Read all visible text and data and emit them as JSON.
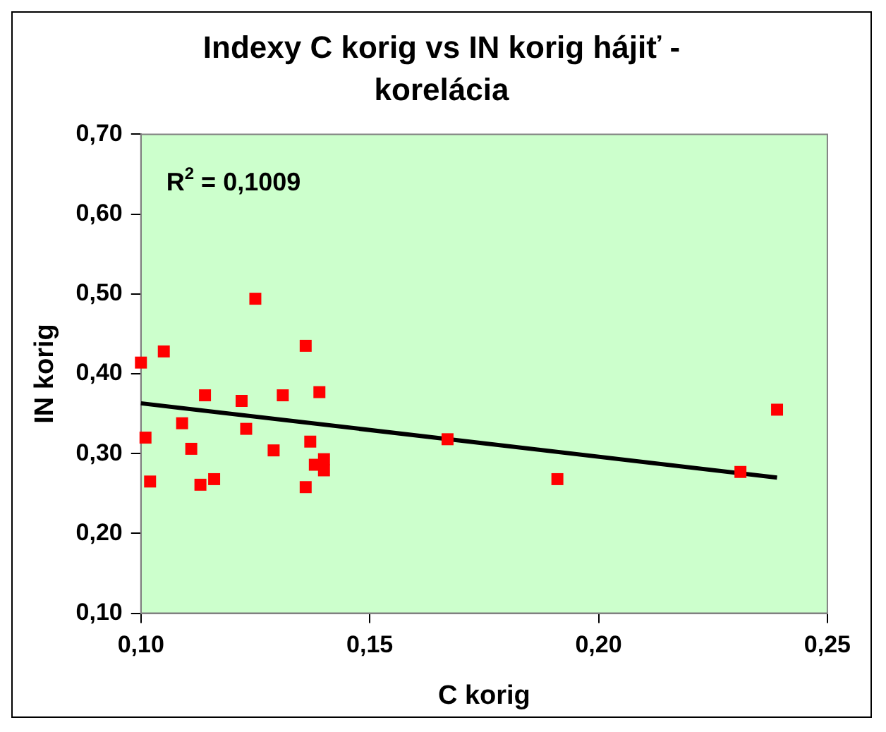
{
  "chart_data": {
    "type": "scatter",
    "title": "Indexy C korig vs IN korig hájiť - korelácia",
    "xlabel": "C korig",
    "ylabel": "IN korig",
    "xlim": [
      0.1,
      0.25
    ],
    "xticks": [
      {
        "value": 0.1,
        "label": "0,10"
      },
      {
        "value": 0.15,
        "label": "0,15"
      },
      {
        "value": 0.2,
        "label": "0,20"
      },
      {
        "value": 0.25,
        "label": "0,25"
      }
    ],
    "ylim": [
      0.1,
      0.7
    ],
    "yticks": [
      {
        "value": 0.1,
        "label": "0,10"
      },
      {
        "value": 0.2,
        "label": "0,20"
      },
      {
        "value": 0.3,
        "label": "0,30"
      },
      {
        "value": 0.4,
        "label": "0,40"
      },
      {
        "value": 0.5,
        "label": "0,50"
      },
      {
        "value": 0.6,
        "label": "0,60"
      },
      {
        "value": 0.7,
        "label": "0,70"
      }
    ],
    "grid": false,
    "legend": false,
    "marker": "square",
    "annotations": [
      "R$^{2}$ = 0,1009"
    ],
    "series": [
      {
        "type": "scatter",
        "color": "#ff0000",
        "x": [
          0.1,
          0.105,
          0.101,
          0.102,
          0.109,
          0.111,
          0.114,
          0.113,
          0.116,
          0.125,
          0.122,
          0.123,
          0.129,
          0.131,
          0.136,
          0.139,
          0.137,
          0.136,
          0.138,
          0.14,
          0.14,
          0.167,
          0.191,
          0.231,
          0.239
        ],
        "values": [
          0.414,
          0.428,
          0.32,
          0.265,
          0.338,
          0.306,
          0.373,
          0.261,
          0.268,
          0.494,
          0.366,
          0.331,
          0.304,
          0.373,
          0.435,
          0.377,
          0.315,
          0.258,
          0.286,
          0.293,
          0.279,
          0.318,
          0.268,
          0.277,
          0.355
        ]
      },
      {
        "type": "line",
        "color": "#000000",
        "marker": "none",
        "line_style": "solid",
        "x": [
          0.1,
          0.239
        ],
        "values": [
          0.363,
          0.27
        ]
      }
    ]
  }
}
